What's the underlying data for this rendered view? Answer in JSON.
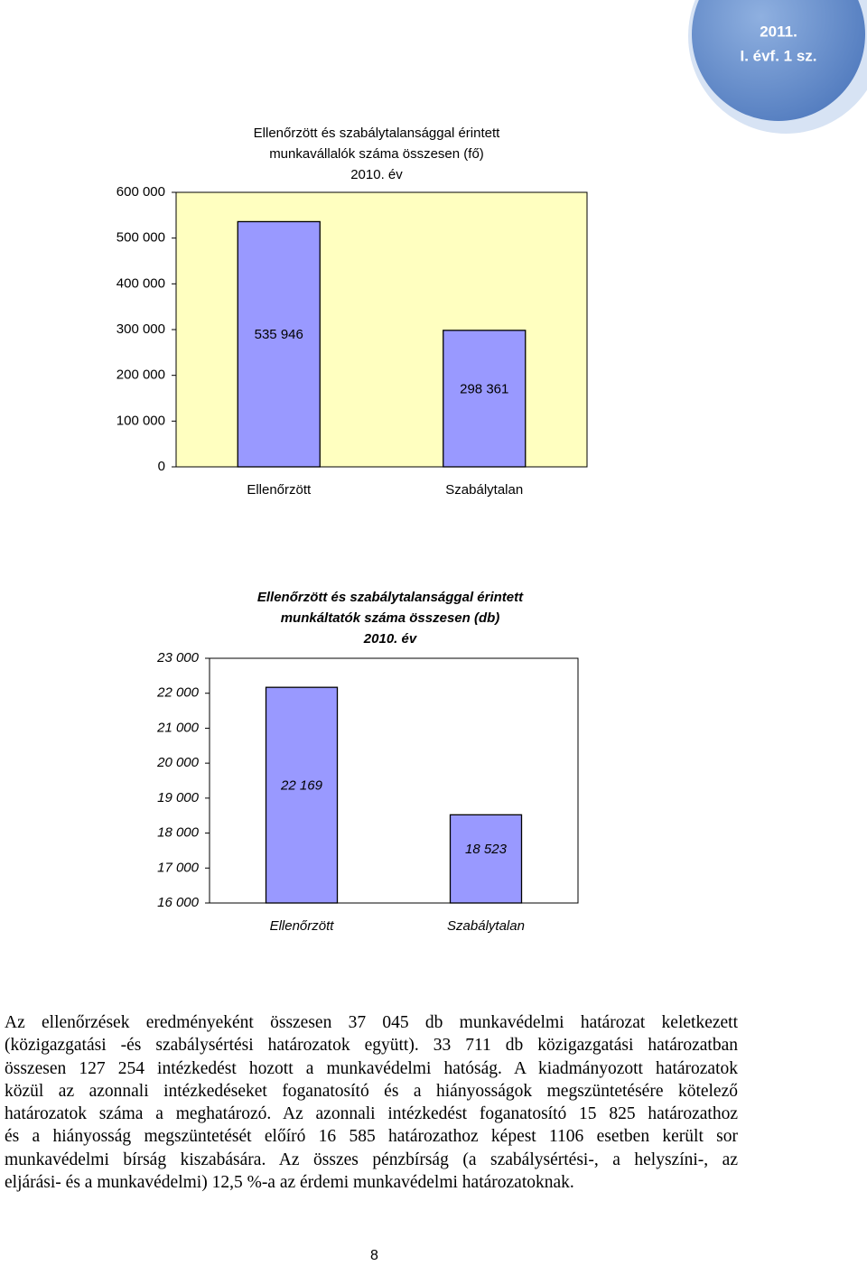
{
  "header": {
    "badge": [
      "2011.",
      "I. évf. 1 sz."
    ]
  },
  "chart_data": [
    {
      "type": "bar",
      "title": [
        "Ellenőrzött és szabálytalansággal érintett",
        "munkavállalók száma összesen (fő)",
        "2010. év"
      ],
      "categories": [
        "Ellenőrzött",
        "Szabálytalan"
      ],
      "values": [
        535946,
        298361
      ],
      "value_labels": [
        "535 946",
        "298 361"
      ],
      "color": "#9999ff",
      "plot_background": "#ffffc0",
      "ylim": [
        0,
        600000
      ],
      "yticks": [
        {
          "value": 0,
          "label": "0"
        },
        {
          "value": 100000,
          "label": "100 000"
        },
        {
          "value": 200000,
          "label": "200 000"
        },
        {
          "value": 300000,
          "label": "300 000"
        },
        {
          "value": 400000,
          "label": "400 000"
        },
        {
          "value": 500000,
          "label": "500 000"
        },
        {
          "value": 600000,
          "label": "600 000"
        }
      ],
      "grid": false
    },
    {
      "type": "bar",
      "title": [
        "Ellenőrzött és szabálytalansággal érintett",
        "munkáltatók száma összesen (db)",
        "2010. év"
      ],
      "categories": [
        "Ellenőrzött",
        "Szabálytalan"
      ],
      "values": [
        22169,
        18523
      ],
      "value_labels": [
        "22 169",
        "18 523"
      ],
      "color": "#9999ff",
      "plot_background": "#ffffff",
      "ylim": [
        16000,
        23000
      ],
      "yticks": [
        {
          "value": 16000,
          "label": "16 000"
        },
        {
          "value": 17000,
          "label": "17 000"
        },
        {
          "value": 18000,
          "label": "18 000"
        },
        {
          "value": 19000,
          "label": "19 000"
        },
        {
          "value": 20000,
          "label": "20 000"
        },
        {
          "value": 21000,
          "label": "21 000"
        },
        {
          "value": 22000,
          "label": "22 000"
        },
        {
          "value": 23000,
          "label": "23 000"
        }
      ],
      "grid": false
    }
  ],
  "body": {
    "paragraph": [
      "Az ellenőrzések eredményeként összesen 37 045 db munkavédelmi határozat keletkezett",
      "(közigazgatási -és szabálysértési határozatok együtt). 33 711 db közigazgatási határozatban",
      "összesen 127 254 intézkedést hozott a munkavédelmi hatóság. A kiadmányozott határozatok",
      "közül az azonnali intézkedéseket foganatosító és a hiányosságok megszüntetésére kötelező",
      "határozatok száma a meghatározó. Az azonnali intézkedést foganatosító 15 825 határozathoz",
      "és a hiányosság megszüntetését előíró 16 585 határozathoz képest 1106 esetben került sor",
      "munkavédelmi bírság kiszabására. Az összes pénzbírság (a szabálysértési-, a helyszíni-, az",
      "eljárási- és a munkavédelmi) 12,5 %-a az érdemi munkavédelmi határozatoknak."
    ]
  },
  "footer": {
    "page": "8"
  }
}
